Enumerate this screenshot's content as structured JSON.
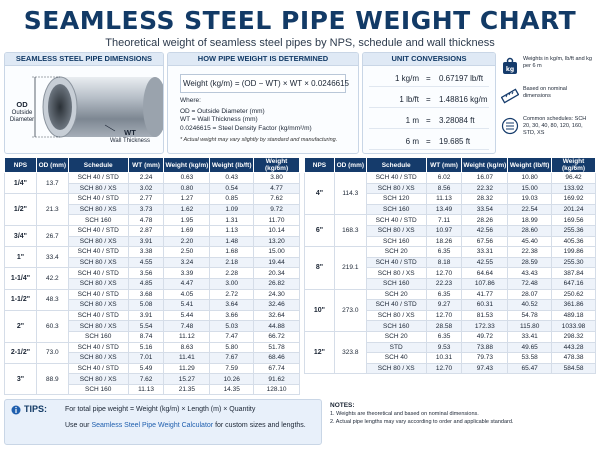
{
  "title": "SEAMLESS STEEL PIPE WEIGHT CHART",
  "subtitle": "Theoretical weight of seamless steel pipes by NPS, schedule and wall thickness",
  "dimensions": {
    "heading": "SEAMLESS STEEL PIPE DIMENSIONS",
    "od": "OD",
    "od_desc": "Outside Diameter",
    "wt": "WT",
    "wt_desc": "Wall Thickness"
  },
  "formula_box": {
    "heading": "HOW PIPE WEIGHT IS DETERMINED",
    "formula": "Weight (kg/m) = (OD − WT) × WT × 0.0246615",
    "where": "Where:",
    "defs": [
      "OD = Outside Diameter (mm)",
      "WT = Wall Thickness (mm)",
      "0.0246615 = Steel Density Factor (kg/mm²/m)"
    ],
    "note": "* Actual weight may vary slightly by standard and manufacturing."
  },
  "unit_conversions": {
    "heading": "UNIT CONVERSIONS",
    "rows": [
      {
        "left": "1 kg/m",
        "right": "0.67197 lb/ft"
      },
      {
        "left": "1 lb/ft",
        "right": "1.48816 kg/m"
      },
      {
        "left": "1 m",
        "right": "3.28084 ft"
      },
      {
        "left": "6 m",
        "right": "19.685 ft"
      }
    ]
  },
  "legend": [
    {
      "icon": "kg-weight-icon",
      "text": "Weights in kg/m, lb/ft and kg per 6 m"
    },
    {
      "icon": "ruler-icon",
      "text": "Based on nominal dimensions"
    },
    {
      "icon": "list-check-icon",
      "text": "Common schedules: SCH 20, 30, 40, 80, 120, 160, STD, XS"
    }
  ],
  "table_headers": [
    "NPS",
    "OD (mm)",
    "Schedule",
    "WT (mm)",
    "Weight (kg/m)",
    "Weight (lb/ft)",
    "Weight (kg/6m)"
  ],
  "table_left": [
    {
      "nps": "1/4\"",
      "od": "13.7",
      "rows": [
        [
          "SCH 40 / STD",
          "2.24",
          "0.63",
          "0.43",
          "3.80"
        ],
        [
          "SCH 80 / XS",
          "3.02",
          "0.80",
          "0.54",
          "4.77"
        ]
      ]
    },
    {
      "nps": "1/2\"",
      "od": "21.3",
      "rows": [
        [
          "SCH 40 / STD",
          "2.77",
          "1.27",
          "0.85",
          "7.62"
        ],
        [
          "SCH 80 / XS",
          "3.73",
          "1.62",
          "1.09",
          "9.72"
        ],
        [
          "SCH 160",
          "4.78",
          "1.95",
          "1.31",
          "11.70"
        ]
      ]
    },
    {
      "nps": "3/4\"",
      "od": "26.7",
      "rows": [
        [
          "SCH 40 / STD",
          "2.87",
          "1.69",
          "1.13",
          "10.14"
        ],
        [
          "SCH 80 / XS",
          "3.91",
          "2.20",
          "1.48",
          "13.20"
        ]
      ]
    },
    {
      "nps": "1\"",
      "od": "33.4",
      "rows": [
        [
          "SCH 40 / STD",
          "3.38",
          "2.50",
          "1.68",
          "15.00"
        ],
        [
          "SCH 80 / XS",
          "4.55",
          "3.24",
          "2.18",
          "19.44"
        ]
      ]
    },
    {
      "nps": "1-1/4\"",
      "od": "42.2",
      "rows": [
        [
          "SCH 40 / STD",
          "3.56",
          "3.39",
          "2.28",
          "20.34"
        ],
        [
          "SCH 80 / XS",
          "4.85",
          "4.47",
          "3.00",
          "26.82"
        ]
      ]
    },
    {
      "nps": "1-1/2\"",
      "od": "48.3",
      "rows": [
        [
          "SCH 40 / STD",
          "3.68",
          "4.05",
          "2.72",
          "24.30"
        ],
        [
          "SCH 80 / XS",
          "5.08",
          "5.41",
          "3.64",
          "32.46"
        ]
      ]
    },
    {
      "nps": "2\"",
      "od": "60.3",
      "rows": [
        [
          "SCH 40 / STD",
          "3.91",
          "5.44",
          "3.66",
          "32.64"
        ],
        [
          "SCH 80 / XS",
          "5.54",
          "7.48",
          "5.03",
          "44.88"
        ],
        [
          "SCH 160",
          "8.74",
          "11.12",
          "7.47",
          "66.72"
        ]
      ]
    },
    {
      "nps": "2-1/2\"",
      "od": "73.0",
      "rows": [
        [
          "SCH 40 / STD",
          "5.16",
          "8.63",
          "5.80",
          "51.78"
        ],
        [
          "SCH 80 / XS",
          "7.01",
          "11.41",
          "7.67",
          "68.46"
        ]
      ]
    },
    {
      "nps": "3\"",
      "od": "88.9",
      "rows": [
        [
          "SCH 40 / STD",
          "5.49",
          "11.29",
          "7.59",
          "67.74"
        ],
        [
          "SCH 80 / XS",
          "7.62",
          "15.27",
          "10.26",
          "91.62"
        ],
        [
          "SCH 160",
          "11.13",
          "21.35",
          "14.35",
          "128.10"
        ]
      ]
    }
  ],
  "table_right": [
    {
      "nps": "4\"",
      "od": "114.3",
      "rows": [
        [
          "SCH 40 / STD",
          "6.02",
          "16.07",
          "10.80",
          "96.42"
        ],
        [
          "SCH 80 / XS",
          "8.56",
          "22.32",
          "15.00",
          "133.92"
        ],
        [
          "SCH 120",
          "11.13",
          "28.32",
          "19.03",
          "169.92"
        ],
        [
          "SCH 160",
          "13.49",
          "33.54",
          "22.54",
          "201.24"
        ]
      ]
    },
    {
      "nps": "6\"",
      "od": "168.3",
      "rows": [
        [
          "SCH 40 / STD",
          "7.11",
          "28.26",
          "18.99",
          "169.56"
        ],
        [
          "SCH 80 / XS",
          "10.97",
          "42.56",
          "28.60",
          "255.36"
        ],
        [
          "SCH 160",
          "18.26",
          "67.56",
          "45.40",
          "405.36"
        ]
      ]
    },
    {
      "nps": "8\"",
      "od": "219.1",
      "rows": [
        [
          "SCH 20",
          "6.35",
          "33.31",
          "22.38",
          "199.86"
        ],
        [
          "SCH 40 / STD",
          "8.18",
          "42.55",
          "28.59",
          "255.30"
        ],
        [
          "SCH 80 / XS",
          "12.70",
          "64.64",
          "43.43",
          "387.84"
        ],
        [
          "SCH 160",
          "22.23",
          "107.86",
          "72.48",
          "647.16"
        ]
      ]
    },
    {
      "nps": "10\"",
      "od": "273.0",
      "rows": [
        [
          "SCH 20",
          "6.35",
          "41.77",
          "28.07",
          "250.62"
        ],
        [
          "SCH 40 / STD",
          "9.27",
          "60.31",
          "40.52",
          "361.86"
        ],
        [
          "SCH 80 / XS",
          "12.70",
          "81.53",
          "54.78",
          "489.18"
        ],
        [
          "SCH 160",
          "28.58",
          "172.33",
          "115.80",
          "1033.98"
        ]
      ]
    },
    {
      "nps": "12\"",
      "od": "323.8",
      "rows": [
        [
          "SCH 20",
          "6.35",
          "49.72",
          "33.41",
          "298.32"
        ],
        [
          "STD",
          "9.53",
          "73.88",
          "49.65",
          "443.28"
        ],
        [
          "SCH 40",
          "10.31",
          "79.73",
          "53.58",
          "478.38"
        ],
        [
          "SCH 80 / XS",
          "12.70",
          "97.43",
          "65.47",
          "584.58"
        ]
      ]
    }
  ],
  "tips": {
    "title": "TIPS:",
    "line1": "For total pipe weight = Weight (kg/m) × Length (m) × Quantity",
    "line2_pre": "Use our ",
    "line2_link": "Seamless Steel Pipe Weight Calculator",
    "line2_post": " for custom sizes and lengths."
  },
  "notes": {
    "title": "NOTES:",
    "items": [
      "1. Weights are theoretical and based on nominal dimensions.",
      "2. Actual pipe lengths may vary according to order and applicable standard."
    ]
  },
  "colors": {
    "navy": "#153b6b",
    "accent": "#1f5fae",
    "light_bg": "#e8f0fa"
  }
}
